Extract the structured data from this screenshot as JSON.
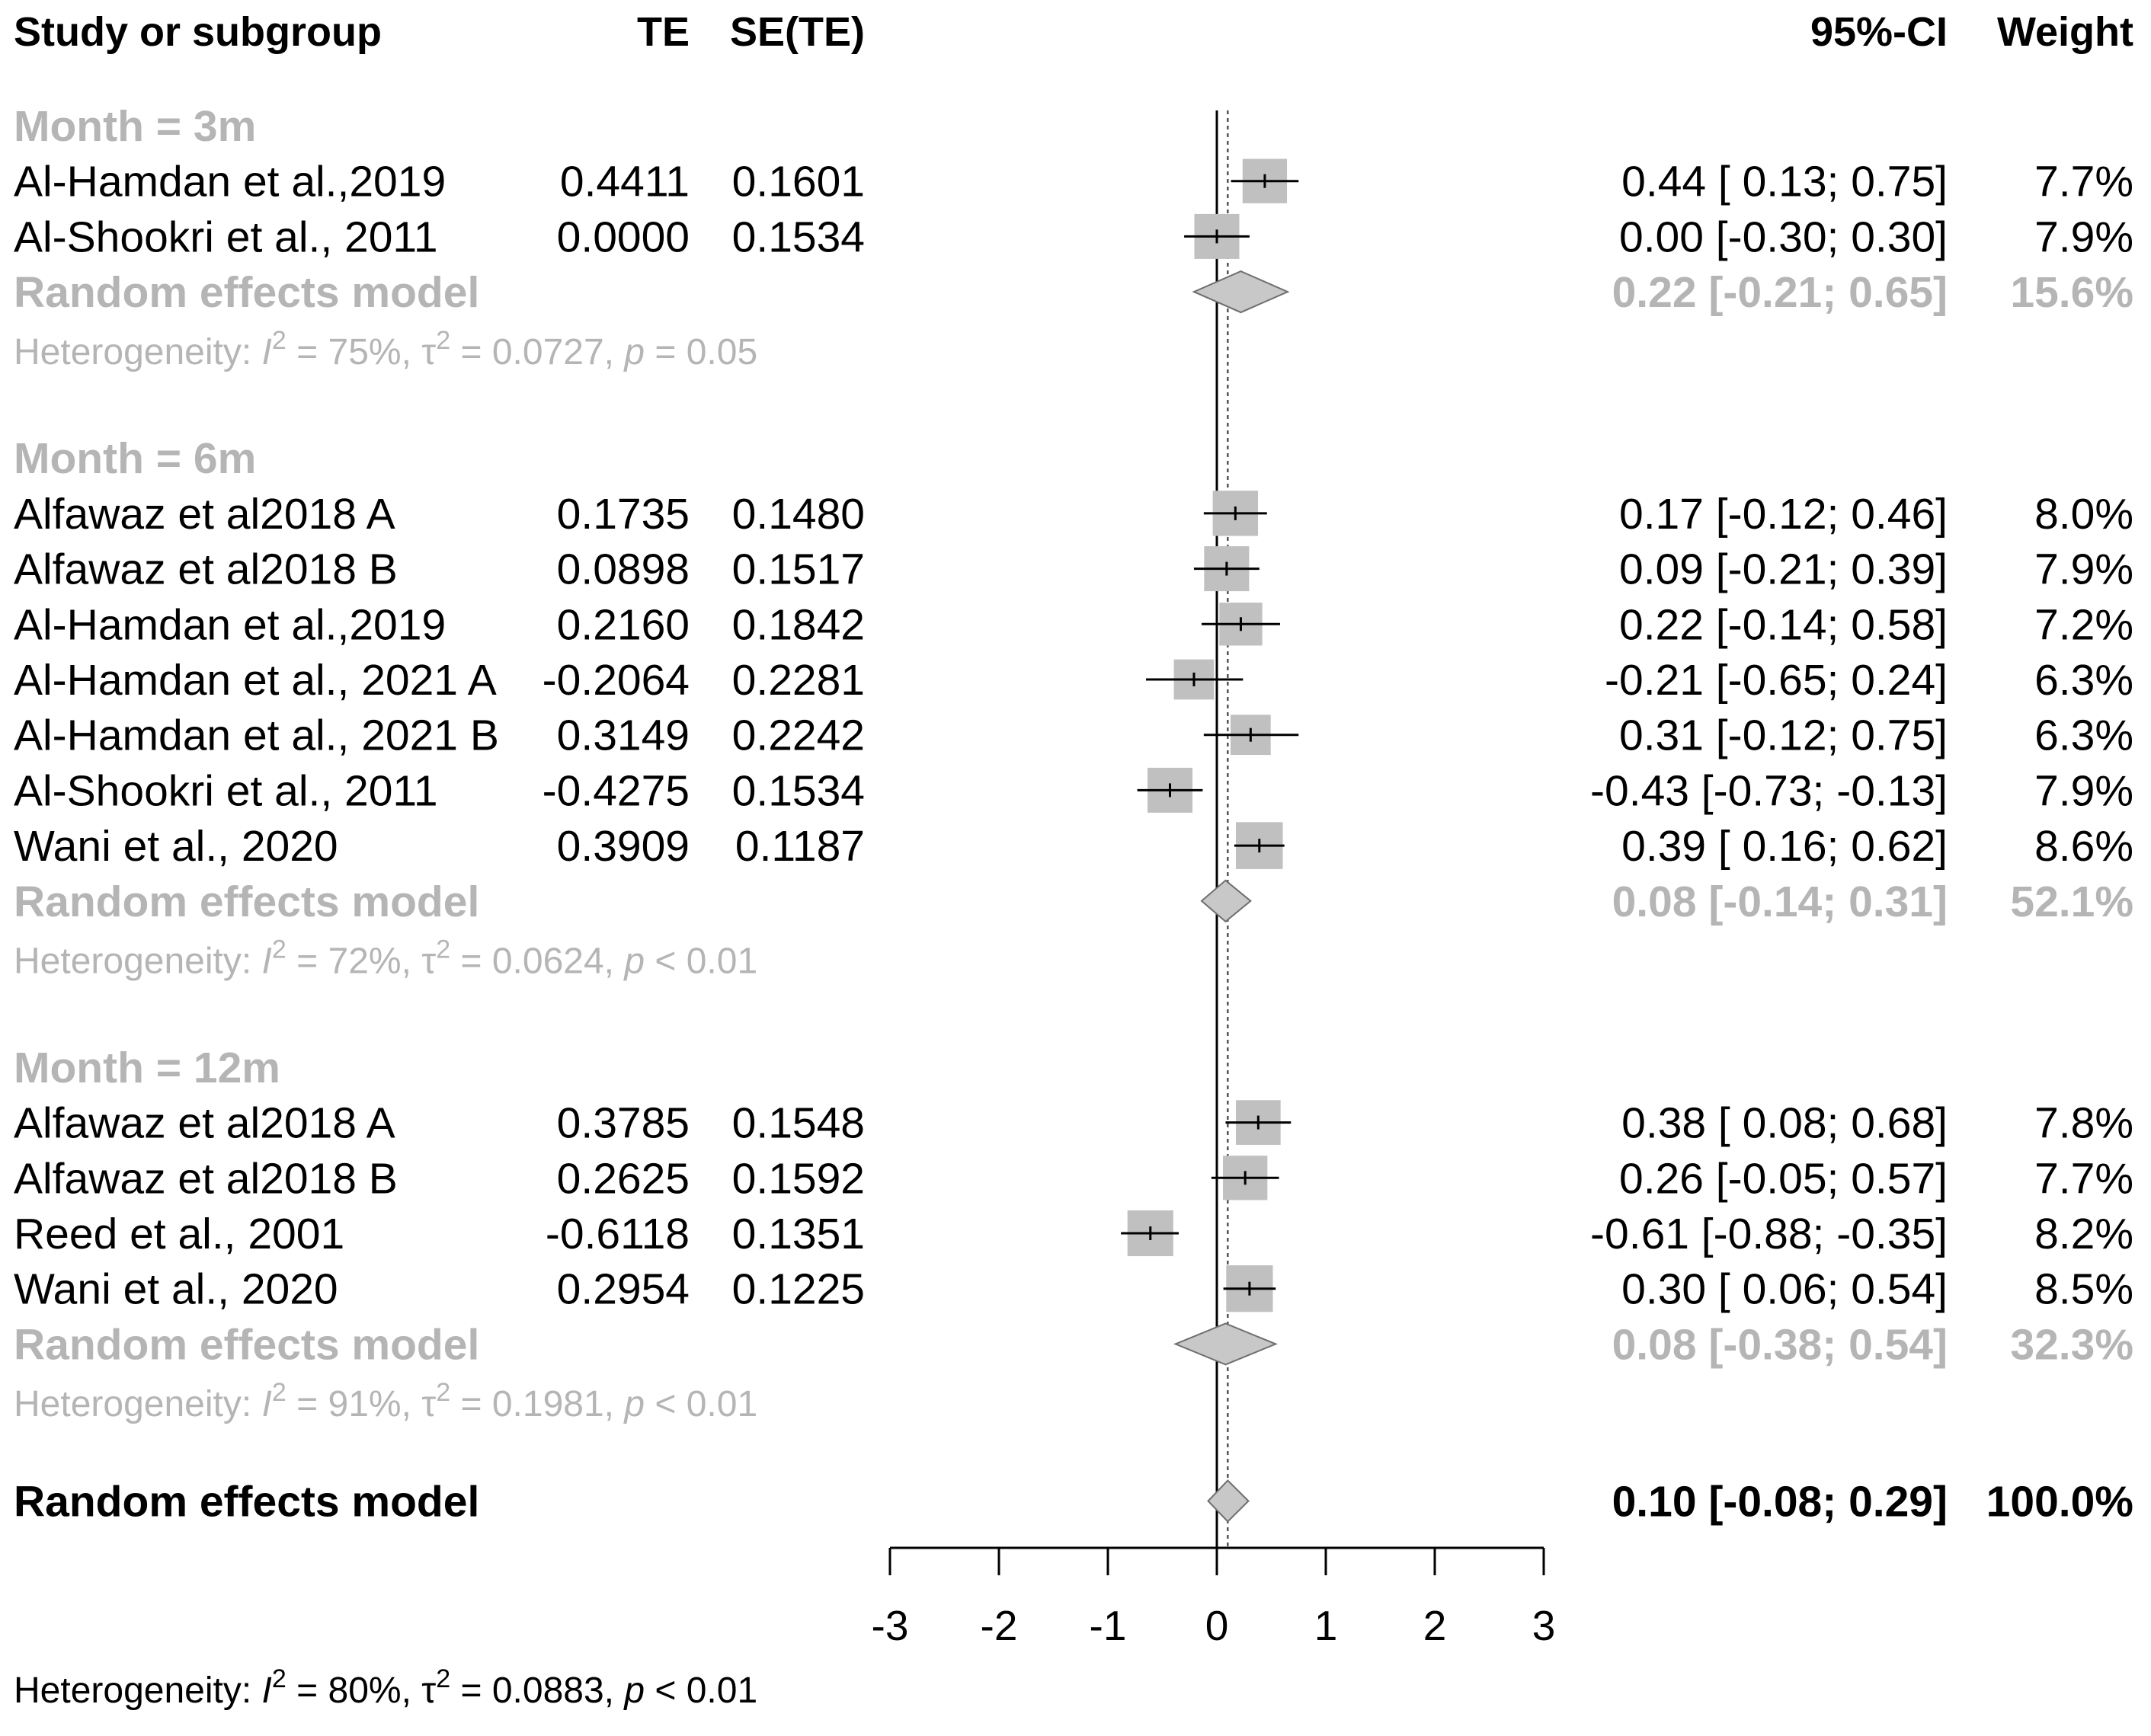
{
  "header": {
    "study": "Study or subgroup",
    "te": "TE",
    "se": "SE(TE)",
    "ci": "95%-CI",
    "weight": "Weight"
  },
  "colors": {
    "text": "#000000",
    "subgroup_text": "#b5b5b5",
    "box": "#c0c0c0",
    "diamond": "#c8c8c8",
    "line": "#000000"
  },
  "chart_data": {
    "type": "forest",
    "xlim": [
      -3,
      3
    ],
    "xticks": [
      "-3",
      "-2",
      "-1",
      "0",
      "1",
      "2",
      "3"
    ],
    "groups": [
      {
        "label": "Month = 3m",
        "studies": [
          {
            "name": "Al-Hamdan et al.,2019",
            "te": "0.4411",
            "se": "0.1601",
            "est": 0.44,
            "lo": 0.13,
            "hi": 0.75,
            "ci": "0.44  [ 0.13;  0.75]",
            "weight": "7.7%",
            "w": 7.7
          },
          {
            "name": "Al-Shookri et al., 2011",
            "te": "0.0000",
            "se": "0.1534",
            "est": 0.0,
            "lo": -0.3,
            "hi": 0.3,
            "ci": "0.00  [-0.30;  0.30]",
            "weight": "7.9%",
            "w": 7.9
          }
        ],
        "summary": {
          "label": "Random effects model",
          "est": 0.22,
          "lo": -0.21,
          "hi": 0.65,
          "ci": "0.22  [-0.21;  0.65]",
          "weight": "15.6%"
        },
        "heterogeneity": {
          "prefix": "Heterogeneity: ",
          "i2": " = 75%, ",
          "tau2": " = 0.0727, ",
          "p": " = 0.05"
        }
      },
      {
        "label": "Month = 6m",
        "studies": [
          {
            "name": "Alfawaz et al2018 A",
            "te": "0.1735",
            "se": "0.1480",
            "est": 0.17,
            "lo": -0.12,
            "hi": 0.46,
            "ci": "0.17  [-0.12;  0.46]",
            "weight": "8.0%",
            "w": 8.0
          },
          {
            "name": "Alfawaz et al2018 B",
            "te": "0.0898",
            "se": "0.1517",
            "est": 0.09,
            "lo": -0.21,
            "hi": 0.39,
            "ci": "0.09  [-0.21;  0.39]",
            "weight": "7.9%",
            "w": 7.9
          },
          {
            "name": "Al-Hamdan et al.,2019",
            "te": "0.2160",
            "se": "0.1842",
            "est": 0.22,
            "lo": -0.14,
            "hi": 0.58,
            "ci": "0.22  [-0.14;  0.58]",
            "weight": "7.2%",
            "w": 7.2
          },
          {
            "name": "Al-Hamdan et al., 2021 A",
            "te": "-0.2064",
            "se": "0.2281",
            "est": -0.21,
            "lo": -0.65,
            "hi": 0.24,
            "ci": "-0.21  [-0.65;  0.24]",
            "weight": "6.3%",
            "w": 6.3
          },
          {
            "name": "Al-Hamdan et al., 2021 B",
            "te": "0.3149",
            "se": "0.2242",
            "est": 0.31,
            "lo": -0.12,
            "hi": 0.75,
            "ci": "0.31  [-0.12;  0.75]",
            "weight": "6.3%",
            "w": 6.3
          },
          {
            "name": "Al-Shookri et al., 2011",
            "te": "-0.4275",
            "se": "0.1534",
            "est": -0.43,
            "lo": -0.73,
            "hi": -0.13,
            "ci": "-0.43  [-0.73; -0.13]",
            "weight": "7.9%",
            "w": 7.9
          },
          {
            "name": "Wani et al., 2020",
            "te": "0.3909",
            "se": "0.1187",
            "est": 0.39,
            "lo": 0.16,
            "hi": 0.62,
            "ci": "0.39  [ 0.16;  0.62]",
            "weight": "8.6%",
            "w": 8.6
          }
        ],
        "summary": {
          "label": "Random effects model",
          "est": 0.08,
          "lo": -0.14,
          "hi": 0.31,
          "ci": "0.08  [-0.14;  0.31]",
          "weight": "52.1%"
        },
        "heterogeneity": {
          "prefix": "Heterogeneity: ",
          "i2": " = 72%, ",
          "tau2": " = 0.0624, ",
          "p": " < 0.01"
        }
      },
      {
        "label": "Month = 12m",
        "studies": [
          {
            "name": "Alfawaz et al2018 A",
            "te": "0.3785",
            "se": "0.1548",
            "est": 0.38,
            "lo": 0.08,
            "hi": 0.68,
            "ci": "0.38  [ 0.08;  0.68]",
            "weight": "7.8%",
            "w": 7.8
          },
          {
            "name": "Alfawaz et al2018 B",
            "te": "0.2625",
            "se": "0.1592",
            "est": 0.26,
            "lo": -0.05,
            "hi": 0.57,
            "ci": "0.26  [-0.05;  0.57]",
            "weight": "7.7%",
            "w": 7.7
          },
          {
            "name": "Reed et al., 2001",
            "te": "-0.6118",
            "se": "0.1351",
            "est": -0.61,
            "lo": -0.88,
            "hi": -0.35,
            "ci": "-0.61  [-0.88; -0.35]",
            "weight": "8.2%",
            "w": 8.2
          },
          {
            "name": "Wani et al., 2020",
            "te": "0.2954",
            "se": "0.1225",
            "est": 0.3,
            "lo": 0.06,
            "hi": 0.54,
            "ci": "0.30  [ 0.06;  0.54]",
            "weight": "8.5%",
            "w": 8.5
          }
        ],
        "summary": {
          "label": "Random effects model",
          "est": 0.08,
          "lo": -0.38,
          "hi": 0.54,
          "ci": "0.08  [-0.38;  0.54]",
          "weight": "32.3%"
        },
        "heterogeneity": {
          "prefix": "Heterogeneity: ",
          "i2": " = 91%, ",
          "tau2": " = 0.1981, ",
          "p": " < 0.01"
        }
      }
    ],
    "overall": {
      "label": "Random effects model",
      "est": 0.1,
      "lo": -0.08,
      "hi": 0.29,
      "ci": "0.10  [-0.08;  0.29]",
      "weight": "100.0%"
    },
    "overall_heterogeneity": {
      "prefix": "Heterogeneity: ",
      "i2": " = 80%, ",
      "tau2": " = 0.0883, ",
      "p": " < 0.01"
    }
  }
}
